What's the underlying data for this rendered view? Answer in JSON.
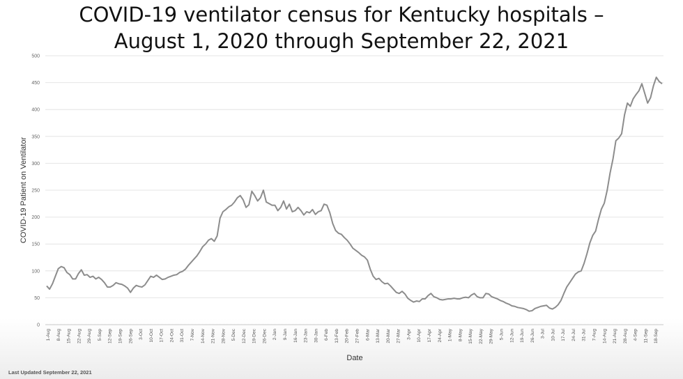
{
  "page": {
    "title_line1": "COVID-19 ventilator census for Kentucky hospitals –",
    "title_line2": "August 1, 2020 through September 22, 2021",
    "footer": "Last Updated September 22, 2021"
  },
  "chart_data": {
    "type": "line",
    "xlabel": "Date",
    "ylabel": "COVID-19 Patient on Ventilator",
    "ylim": [
      0,
      500
    ],
    "yticks": [
      0,
      50,
      100,
      150,
      200,
      250,
      300,
      350,
      400,
      450,
      500
    ],
    "grid": true,
    "legend": "none",
    "color": "#8c8c8c",
    "x_tick_labels": [
      "1-Aug",
      "8-Aug",
      "15-Aug",
      "22-Aug",
      "29-Aug",
      "5-Sep",
      "12-Sep",
      "19-Sep",
      "26-Sep",
      "3-Oct",
      "10-Oct",
      "17-Oct",
      "24-Oct",
      "31-Oct",
      "7-Nov",
      "14-Nov",
      "21-Nov",
      "28-Nov",
      "5-Dec",
      "12-Dec",
      "19-Dec",
      "26-Dec",
      "2-Jan",
      "9-Jan",
      "16-Jan",
      "23-Jan",
      "30-Jan",
      "6-Feb",
      "13-Feb",
      "20-Feb",
      "27-Feb",
      "6-Mar",
      "13-Mar",
      "20-Mar",
      "27-Mar",
      "3-Apr",
      "10-Apr",
      "17-Apr",
      "24-Apr",
      "1-May",
      "8-May",
      "15-May",
      "22-May",
      "29-May",
      "5-Jun",
      "12-Jun",
      "19-Jun",
      "26-Jun",
      "3-Jul",
      "10-Jul",
      "17-Jul",
      "24-Jul",
      "31-Jul",
      "7-Aug",
      "14-Aug",
      "21-Aug",
      "28-Aug",
      "4-Sep",
      "11-Sep",
      "18-Sep"
    ],
    "series": [
      {
        "values": [
          72,
          66,
          76,
          90,
          104,
          108,
          106,
          97,
          93,
          85,
          85,
          95,
          102,
          92,
          93,
          88,
          90,
          85,
          88,
          84,
          78,
          70,
          70,
          73,
          78,
          76,
          75,
          72,
          68,
          60,
          68,
          73,
          71,
          70,
          74,
          82,
          90,
          88,
          92,
          88,
          84,
          85,
          88,
          90,
          92,
          93,
          97,
          99,
          103,
          110,
          116,
          122,
          128,
          136,
          145,
          150,
          157,
          160,
          155,
          165,
          198,
          210,
          214,
          219,
          222,
          228,
          236,
          240,
          232,
          218,
          223,
          248,
          240,
          230,
          236,
          250,
          228,
          225,
          222,
          222,
          212,
          218,
          230,
          215,
          224,
          210,
          212,
          218,
          212,
          204,
          210,
          208,
          214,
          205,
          210,
          212,
          224,
          222,
          208,
          188,
          175,
          170,
          168,
          162,
          157,
          150,
          142,
          138,
          134,
          129,
          126,
          120,
          103,
          90,
          84,
          86,
          80,
          76,
          77,
          72,
          66,
          60,
          58,
          62,
          57,
          49,
          45,
          42,
          44,
          43,
          48,
          48,
          54,
          58,
          52,
          50,
          47,
          46,
          47,
          48,
          48,
          49,
          48,
          48,
          50,
          51,
          50,
          55,
          58,
          52,
          50,
          50,
          58,
          57,
          52,
          50,
          48,
          45,
          43,
          40,
          38,
          35,
          34,
          32,
          31,
          30,
          28,
          25,
          26,
          30,
          32,
          34,
          35,
          36,
          31,
          29,
          32,
          37,
          45,
          58,
          70,
          78,
          86,
          94,
          98,
          100,
          114,
          132,
          152,
          166,
          174,
          196,
          215,
          226,
          250,
          282,
          308,
          342,
          347,
          355,
          390,
          412,
          406,
          420,
          428,
          435,
          448,
          430,
          412,
          422,
          444,
          460,
          452,
          448
        ]
      }
    ]
  }
}
